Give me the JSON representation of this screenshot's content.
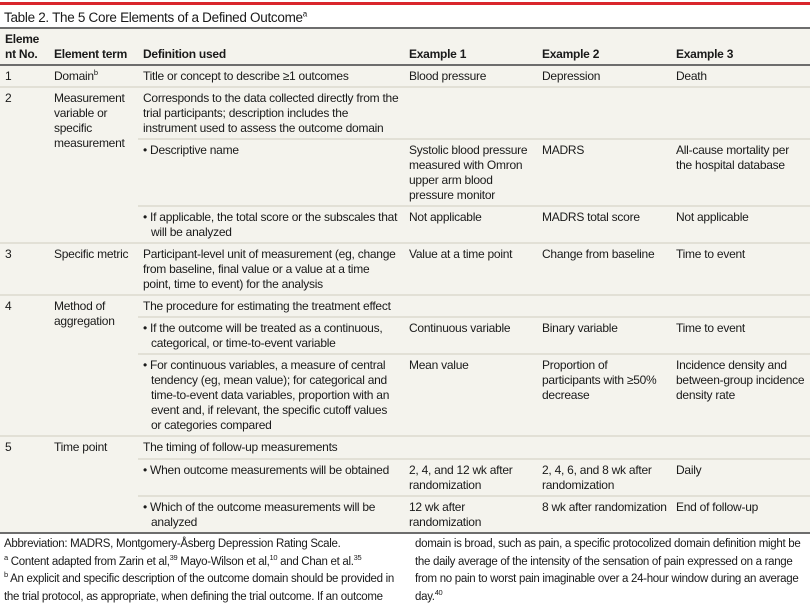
{
  "title": {
    "text": "Table 2. The 5 Core Elements of a Defined Outcome",
    "sup": "a"
  },
  "colors": {
    "accent": "#d9262c",
    "table_bg": "#f4f3ed"
  },
  "headers": [
    "Element No.",
    "Element term",
    "Definition used",
    "Example 1",
    "Example 2",
    "Example 3"
  ],
  "rows": {
    "r1": {
      "no": "1",
      "term": "Domain",
      "term_sup": "b",
      "def": "Title or concept to describe ≥1 outcomes",
      "ex1": "Blood pressure",
      "ex2": "Depression",
      "ex3": "Death"
    },
    "r2": {
      "no": "2",
      "term": "Measurement variable or specific measurement",
      "def": "Corresponds to the data collected directly from the trial participants; description includes the instrument used to assess the outcome domain",
      "subs": [
        {
          "def": "• Descriptive name",
          "ex1": "Systolic blood pressure measured with Omron upper arm blood pressure monitor",
          "ex2": "MADRS",
          "ex3": "All-cause mortality per the hospital database"
        },
        {
          "def": "• If applicable, the total score or the subscales that will be analyzed",
          "ex1": "Not applicable",
          "ex2": "MADRS total score",
          "ex3": "Not applicable"
        }
      ]
    },
    "r3": {
      "no": "3",
      "term": "Specific metric",
      "def": "Participant-level unit of measurement (eg, change from baseline, final value or a value at a time point, time to event) for the analysis",
      "ex1": "Value at a time point",
      "ex2": "Change from baseline",
      "ex3": "Time to event"
    },
    "r4": {
      "no": "4",
      "term": "Method of aggregation",
      "def": "The procedure for estimating the treatment effect",
      "subs": [
        {
          "def": "• If the outcome will be treated as a continuous, categorical, or time-to-event variable",
          "ex1": "Continuous variable",
          "ex2": "Binary variable",
          "ex3": "Time to event"
        },
        {
          "def": "• For continuous variables, a measure of central tendency (eg, mean value); for categorical and time-to-event data variables, proportion with an event and, if relevant, the specific cutoff values or categories compared",
          "ex1": "Mean value",
          "ex2": "Proportion of participants with ≥50% decrease",
          "ex3": "Incidence density and between-group incidence density rate"
        }
      ]
    },
    "r5": {
      "no": "5",
      "term": "Time point",
      "def": "The timing of follow-up measurements",
      "subs": [
        {
          "def": "• When outcome measurements will be obtained",
          "ex1": "2, 4, and 12 wk after randomization",
          "ex2": "2, 4, 6, and 8 wk after randomization",
          "ex3": "Daily"
        },
        {
          "def": "• Which of the outcome measurements will be analyzed",
          "ex1": "12 wk after randomization",
          "ex2": "8 wk after randomization",
          "ex3": "End of follow-up"
        }
      ]
    }
  },
  "notes": {
    "abbrev": "Abbreviation: MADRS, Montgomery-Åsberg Depression Rating Scale.",
    "a": {
      "mark": "a",
      "t1": " Content adapted from Zarin et al,",
      "r1": "39",
      "t2": " Mayo-Wilson et al,",
      "r2": "10",
      "t3": " and Chan et al.",
      "r3": "35"
    },
    "b": {
      "mark": "b",
      "text": " An explicit and specific description of the outcome domain should be provided in the trial protocol, as appropriate, when defining the trial outcome. If an outcome domain is broad, such as pain, a specific protocolized domain definition might be the daily average of the intensity of the sensation of pain expressed on a range from no pain to worst pain imaginable over a 24-hour window during an average day.",
      "ref": "40"
    }
  }
}
